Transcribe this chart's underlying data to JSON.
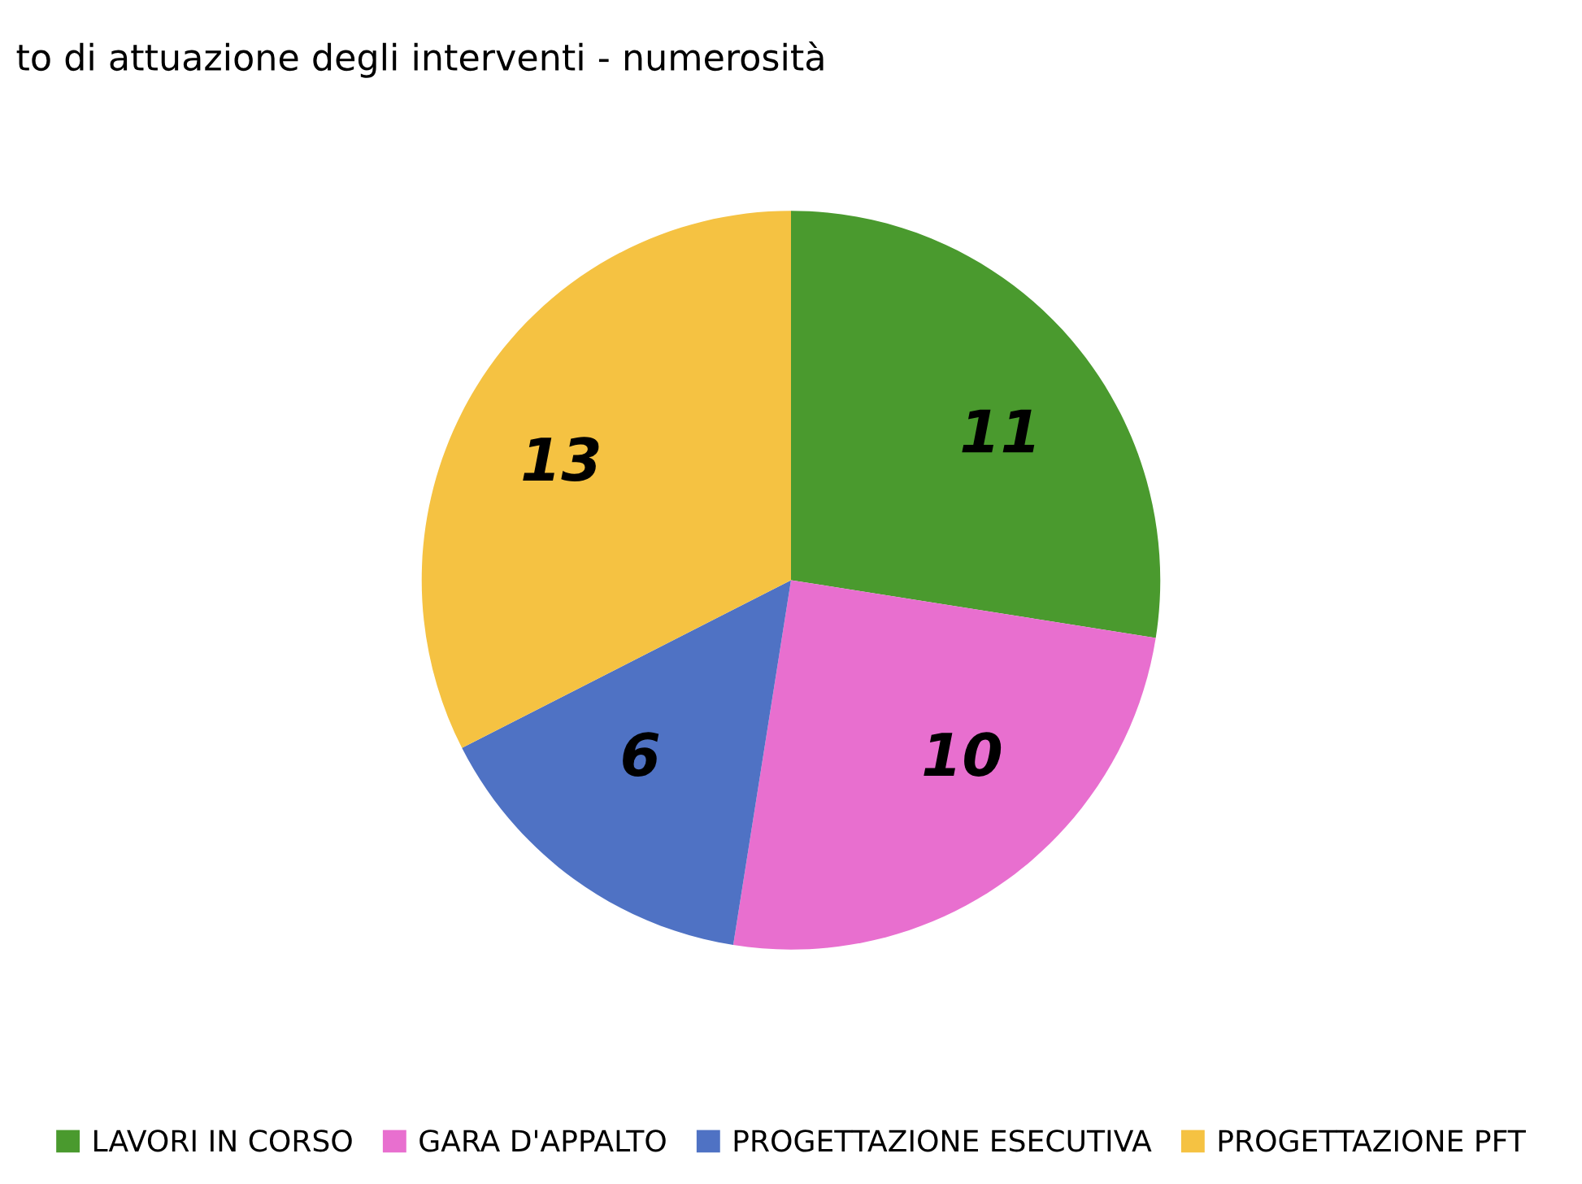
{
  "chart_data": {
    "type": "pie",
    "title": "to di attuazione degli interventi - numerosità",
    "categories": [
      "LAVORI IN CORSO",
      "GARA D'APPALTO",
      "PROGETTAZIONE ESECUTIVA",
      "PROGETTAZIONE PFT"
    ],
    "values": [
      11,
      10,
      6,
      13
    ],
    "colors": [
      "#4a9a2e",
      "#e86fcf",
      "#4f72c4",
      "#f5c242"
    ],
    "data_labels": true,
    "legend": "bottom"
  }
}
